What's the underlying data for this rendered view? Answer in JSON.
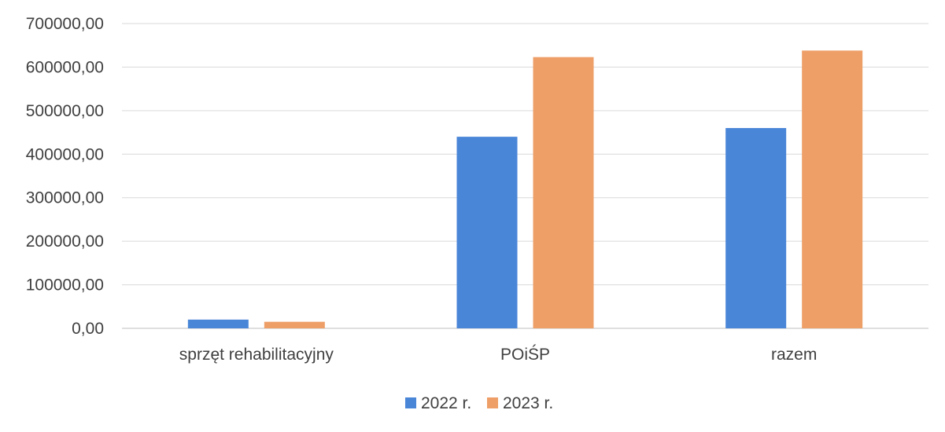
{
  "chart_data": {
    "type": "bar",
    "title": "",
    "xlabel": "",
    "ylabel": "",
    "categories": [
      "sprzęt rehabilitacyjny",
      "POiŚP",
      "razem"
    ],
    "series": [
      {
        "name": "2022 r.",
        "color": "#4a86d8",
        "values": [
          20000,
          440000,
          460000
        ]
      },
      {
        "name": "2023 r.",
        "color": "#ee9f68",
        "values": [
          15000,
          623000,
          638000
        ]
      }
    ],
    "ylim": [
      0,
      700000
    ],
    "yticks": [
      "0,00",
      "100000,00",
      "200000,00",
      "300000,00",
      "400000,00",
      "500000,00",
      "600000,00",
      "700000,00"
    ],
    "grid": true,
    "legend_position": "bottom"
  }
}
